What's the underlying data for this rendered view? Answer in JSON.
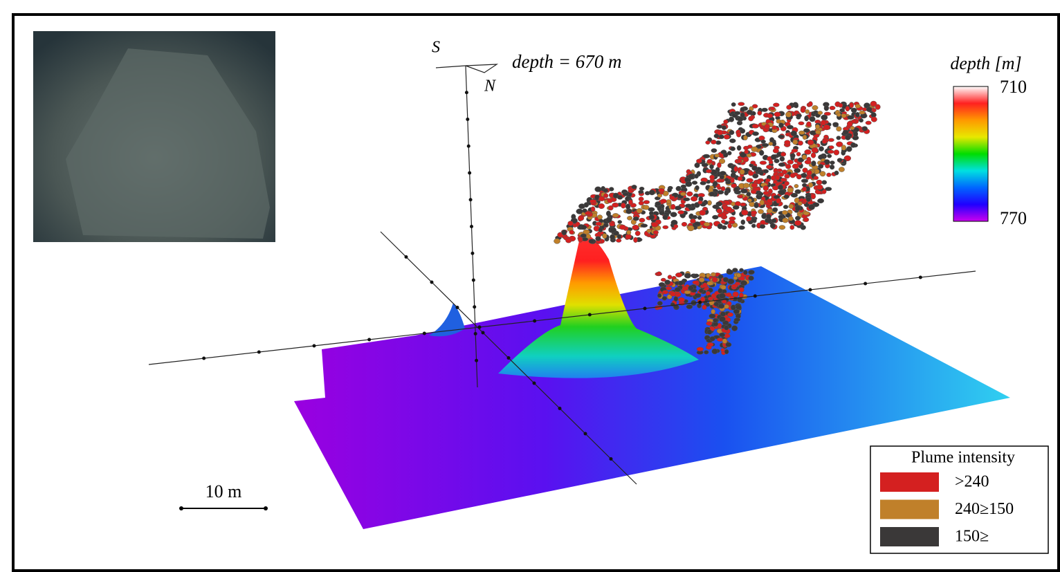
{
  "compass": {
    "south": "S",
    "north": "N"
  },
  "depth_label": "depth = 670 m",
  "colorbar": {
    "title": "depth [m]",
    "top_label": "710",
    "bottom_label": "770",
    "colors": [
      "#ffffff",
      "#ff2020",
      "#ff9900",
      "#e8e800",
      "#00dd00",
      "#00e0e0",
      "#0066ff",
      "#2000ff",
      "#cc00ee"
    ]
  },
  "scale_bar": "10 m",
  "legend": {
    "title": "Plume intensity",
    "entries": [
      {
        "label": ">240",
        "color": "#d42020"
      },
      {
        "label": "240≥150",
        "color": "#c0802a"
      },
      {
        "label": "150≥",
        "color": "#3a3838"
      }
    ]
  }
}
